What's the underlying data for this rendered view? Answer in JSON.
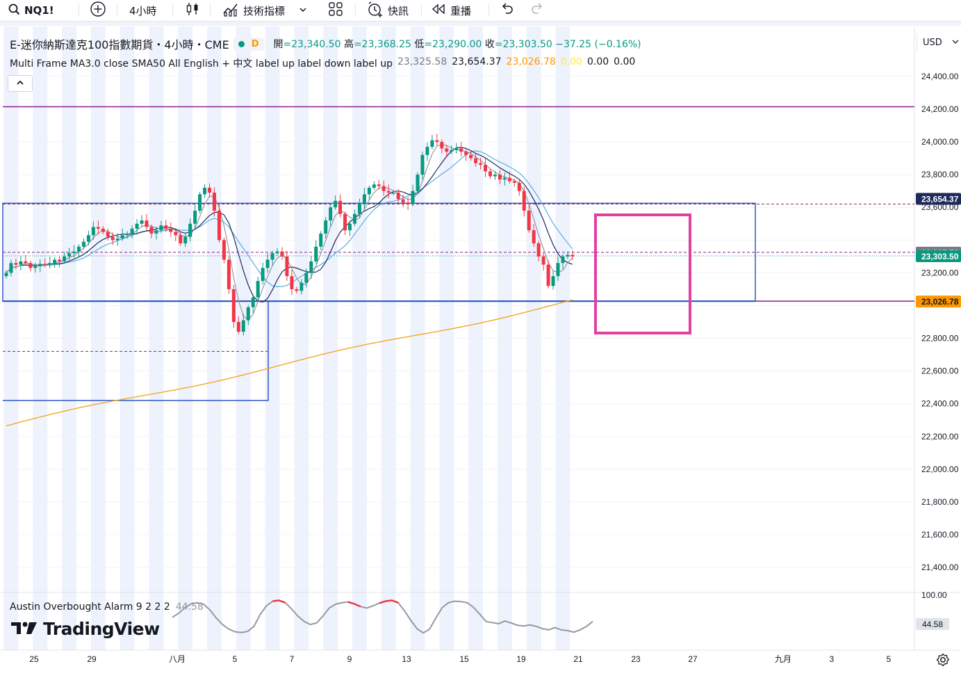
{
  "toolbar": {
    "symbol": "NQ1!",
    "interval": "4小時",
    "indicators": "技術指標",
    "alert": "快訊",
    "replay": "重播"
  },
  "legend": {
    "title": "E-迷你納斯達克100指數期貨・4小時・CME",
    "badge": "D",
    "open_key": "開",
    "open": "=23,340.50",
    "high_key": "高",
    "high": "=23,368.25",
    "low_key": "低",
    "low": "=23,290.00",
    "close_key": "收",
    "close": "=23,303.50",
    "change": "−37.25 (−0.16%)"
  },
  "indicator": {
    "name": "Multi Frame MA3.0 close SMA50 All English + 中文 label up label down label up",
    "values": [
      "23,325.58",
      "23,654.37",
      "23,026.78",
      "0.00",
      "0.00",
      "0.00"
    ],
    "value_colors": [
      "#787b86",
      "#131722",
      "#ff9800",
      "#ffeb3b",
      "#131722",
      "#131722"
    ]
  },
  "currency": "USD",
  "oscillator": {
    "name": "Austin Overbought Alarm 9 2 2 2",
    "value": "44.58",
    "top_tick": "100.00"
  },
  "brand": "TradingView",
  "colors": {
    "up": "#089981",
    "down": "#f23645",
    "ma_fast": "#9598a1",
    "ma_mid": "#1e2a5a",
    "ma_slow": "#5aaee0",
    "sma_long": "#f5a623",
    "level_purple": "#8e1b8e",
    "box_blue": "#2f56c8",
    "box_magenta": "#e040a0",
    "session": "#eef2fd"
  },
  "chart_data": {
    "type": "candlestick",
    "interval": "4小時",
    "y_axis_ticks": [
      "24,400.00",
      "24,200.00",
      "24,000.00",
      "23,800.00",
      "23,600.00",
      "23,200.00",
      "22,800.00",
      "22,600.00",
      "22,400.00",
      "22,200.00",
      "22,000.00",
      "21,800.00",
      "21,600.00",
      "21,400.00"
    ],
    "y_values": [
      24400,
      24200,
      24000,
      23800,
      23600,
      23200,
      22800,
      22600,
      22400,
      22200,
      22000,
      21800,
      21600,
      21400
    ],
    "ylim": [
      21300,
      24520
    ],
    "x_axis_ticks": [
      "25",
      "29",
      "八月",
      "5",
      "7",
      "9",
      "13",
      "15",
      "19",
      "21",
      "23",
      "27",
      "九月",
      "3",
      "5"
    ],
    "price_labels": [
      {
        "text": "23,654.37",
        "value": 23654.37,
        "bg": "#1e2a5a",
        "fg": "#ffffff"
      },
      {
        "text": "23,325.58",
        "value": 23325.58,
        "bg": "#787b86",
        "fg": "#ffffff"
      },
      {
        "text": "23,303.50",
        "value": 23303.5,
        "bg": "#089981",
        "fg": "#ffffff"
      },
      {
        "text": "23,026.78",
        "value": 23026.78,
        "bg": "#ff9800",
        "fg": "#131722"
      }
    ],
    "levels": [
      {
        "name": "purple-level-high",
        "value": 24215
      },
      {
        "name": "purple-level-low",
        "value": 23026.78
      }
    ],
    "dashed_levels": [
      23620,
      23325.58,
      22720
    ],
    "close_series": [
      23200,
      23260,
      23250,
      23270,
      23260,
      23230,
      23240,
      23255,
      23250,
      23260,
      23280,
      23270,
      23300,
      23320,
      23330,
      23360,
      23390,
      23430,
      23480,
      23470,
      23450,
      23420,
      23400,
      23410,
      23430,
      23440,
      23470,
      23500,
      23520,
      23480,
      23440,
      23460,
      23490,
      23470,
      23450,
      23430,
      23380,
      23420,
      23500,
      23580,
      23680,
      23720,
      23690,
      23580,
      23400,
      23280,
      23100,
      22900,
      22840,
      22910,
      22990,
      23050,
      23150,
      23230,
      23280,
      23320,
      23330,
      23300,
      23180,
      23100,
      23090,
      23140,
      23200,
      23270,
      23360,
      23440,
      23520,
      23600,
      23640,
      23560,
      23460,
      23500,
      23560,
      23620,
      23680,
      23720,
      23740,
      23730,
      23700,
      23690,
      23690,
      23650,
      23630,
      23620,
      23700,
      23800,
      23920,
      23970,
      24010,
      24000,
      23960,
      23940,
      23950,
      23960,
      23940,
      23920,
      23900,
      23870,
      23860,
      23820,
      23790,
      23800,
      23770,
      23780,
      23760,
      23750,
      23700,
      23580,
      23460,
      23380,
      23300,
      23250,
      23120,
      23180,
      23260,
      23300,
      23310,
      23300
    ],
    "osc_values": [
      55,
      65,
      80,
      90,
      93,
      89,
      74,
      53,
      36,
      24,
      17,
      15,
      18,
      31,
      62,
      85,
      97,
      99,
      93,
      77,
      58,
      44,
      36,
      40,
      58,
      79,
      89,
      93,
      95,
      90,
      83,
      79,
      85,
      92,
      97,
      99,
      93,
      72,
      47,
      25,
      14,
      24,
      53,
      80,
      93,
      97,
      96,
      93,
      81,
      63,
      44,
      41,
      38,
      45,
      40,
      34,
      32,
      35,
      31,
      25,
      22,
      28,
      22,
      20,
      16,
      22,
      31,
      44
    ]
  }
}
